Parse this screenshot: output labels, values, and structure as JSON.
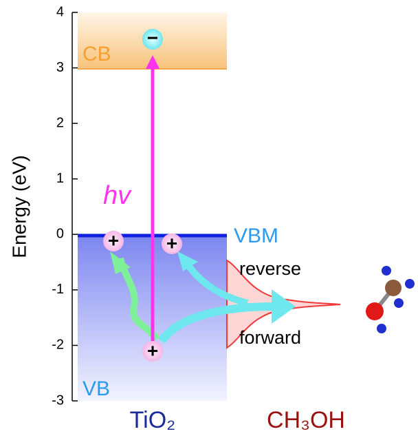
{
  "axis": {
    "label": "Energy (eV)",
    "ylim": [
      -3,
      4
    ],
    "yticks": [
      -3,
      -2,
      -1,
      0,
      1,
      2,
      3,
      4
    ]
  },
  "bands": {
    "cb": "CB",
    "vb": "VB",
    "vbm": "VBM"
  },
  "excitation": "hv",
  "charges": {
    "electron": "−",
    "hole": "+"
  },
  "paths": {
    "reverse": "reverse",
    "forward": "forward"
  },
  "materials": {
    "left": "TiO₂",
    "right": "CH₃OH"
  }
}
